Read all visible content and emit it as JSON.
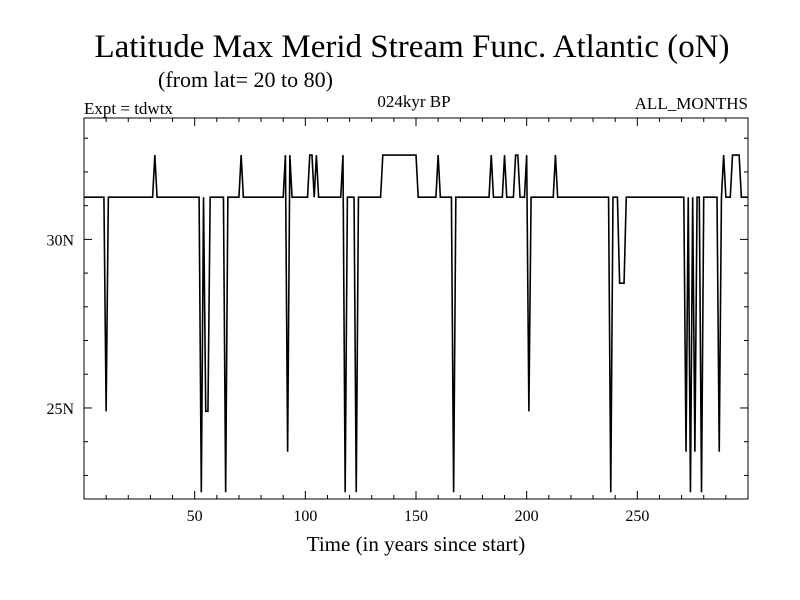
{
  "chart_data": {
    "type": "line",
    "title": "Latitude Max Merid Stream Func. Atlantic (oN)",
    "subtitle": "(from lat= 20 to 80)",
    "experiment_label": "Expt = tdwtx",
    "period_label": "024kyr BP",
    "months_label": "ALL_MONTHS",
    "xlabel": "Time (in years since start)",
    "ylabel": "",
    "xlim": [
      0,
      300
    ],
    "ylim": [
      22.3,
      33.6
    ],
    "x_ticks": [
      50,
      100,
      150,
      200,
      250
    ],
    "x_tick_labels": [
      "50",
      "100",
      "150",
      "200",
      "250"
    ],
    "y_ticks": [
      25,
      30
    ],
    "y_tick_labels": [
      "25N",
      "30N"
    ],
    "grid": false,
    "line_color": "#000000",
    "baseline": 31.25,
    "series": [
      {
        "x": [
          0,
          9,
          10,
          11,
          12,
          31,
          32,
          33,
          52,
          53,
          54,
          55,
          56,
          57,
          58,
          63,
          64,
          65,
          70,
          71,
          72,
          90,
          91,
          92,
          93,
          94,
          101,
          102,
          103,
          104,
          105,
          106,
          107,
          116,
          117,
          118,
          119,
          120,
          122,
          123,
          124,
          125,
          134,
          135,
          136,
          137,
          150,
          151,
          152,
          159,
          160,
          161,
          166,
          167,
          168,
          183,
          184,
          185,
          189,
          190,
          191,
          194,
          195,
          196,
          197,
          199,
          200,
          201,
          202,
          212,
          213,
          214,
          237,
          238,
          239,
          241,
          242,
          243,
          244,
          245,
          246,
          247,
          248,
          271,
          272,
          273,
          274,
          275,
          276,
          277,
          278,
          279,
          280,
          281,
          282,
          285,
          286,
          287,
          288,
          289,
          290,
          291,
          292,
          293,
          294,
          295,
          296,
          297,
          298,
          299,
          300
        ],
        "y": [
          31.25,
          31.25,
          24.9,
          31.25,
          31.25,
          31.25,
          32.5,
          31.25,
          31.25,
          22.5,
          31.25,
          24.9,
          24.9,
          31.25,
          31.25,
          31.25,
          22.5,
          31.25,
          31.25,
          32.5,
          31.25,
          31.25,
          32.5,
          23.7,
          32.5,
          31.25,
          31.25,
          32.5,
          32.5,
          31.25,
          32.5,
          31.25,
          31.25,
          31.25,
          32.5,
          22.5,
          31.25,
          31.25,
          31.25,
          22.5,
          31.25,
          31.25,
          31.25,
          32.5,
          32.5,
          32.5,
          32.5,
          31.25,
          31.25,
          31.25,
          32.5,
          31.25,
          31.25,
          22.5,
          31.25,
          31.25,
          32.5,
          31.25,
          31.25,
          32.5,
          31.25,
          31.25,
          32.5,
          32.5,
          31.25,
          31.25,
          32.5,
          24.9,
          31.25,
          31.25,
          32.5,
          31.25,
          31.25,
          22.5,
          31.25,
          31.25,
          28.7,
          28.7,
          28.7,
          31.25,
          31.25,
          31.25,
          31.25,
          31.25,
          23.7,
          31.25,
          22.5,
          31.25,
          23.7,
          31.25,
          31.25,
          22.5,
          31.25,
          31.25,
          31.25,
          31.25,
          31.25,
          23.7,
          31.25,
          32.5,
          31.25,
          31.25,
          31.25,
          32.5,
          32.5,
          32.5,
          32.5,
          31.25,
          31.25,
          31.25,
          31.25
        ]
      }
    ]
  }
}
